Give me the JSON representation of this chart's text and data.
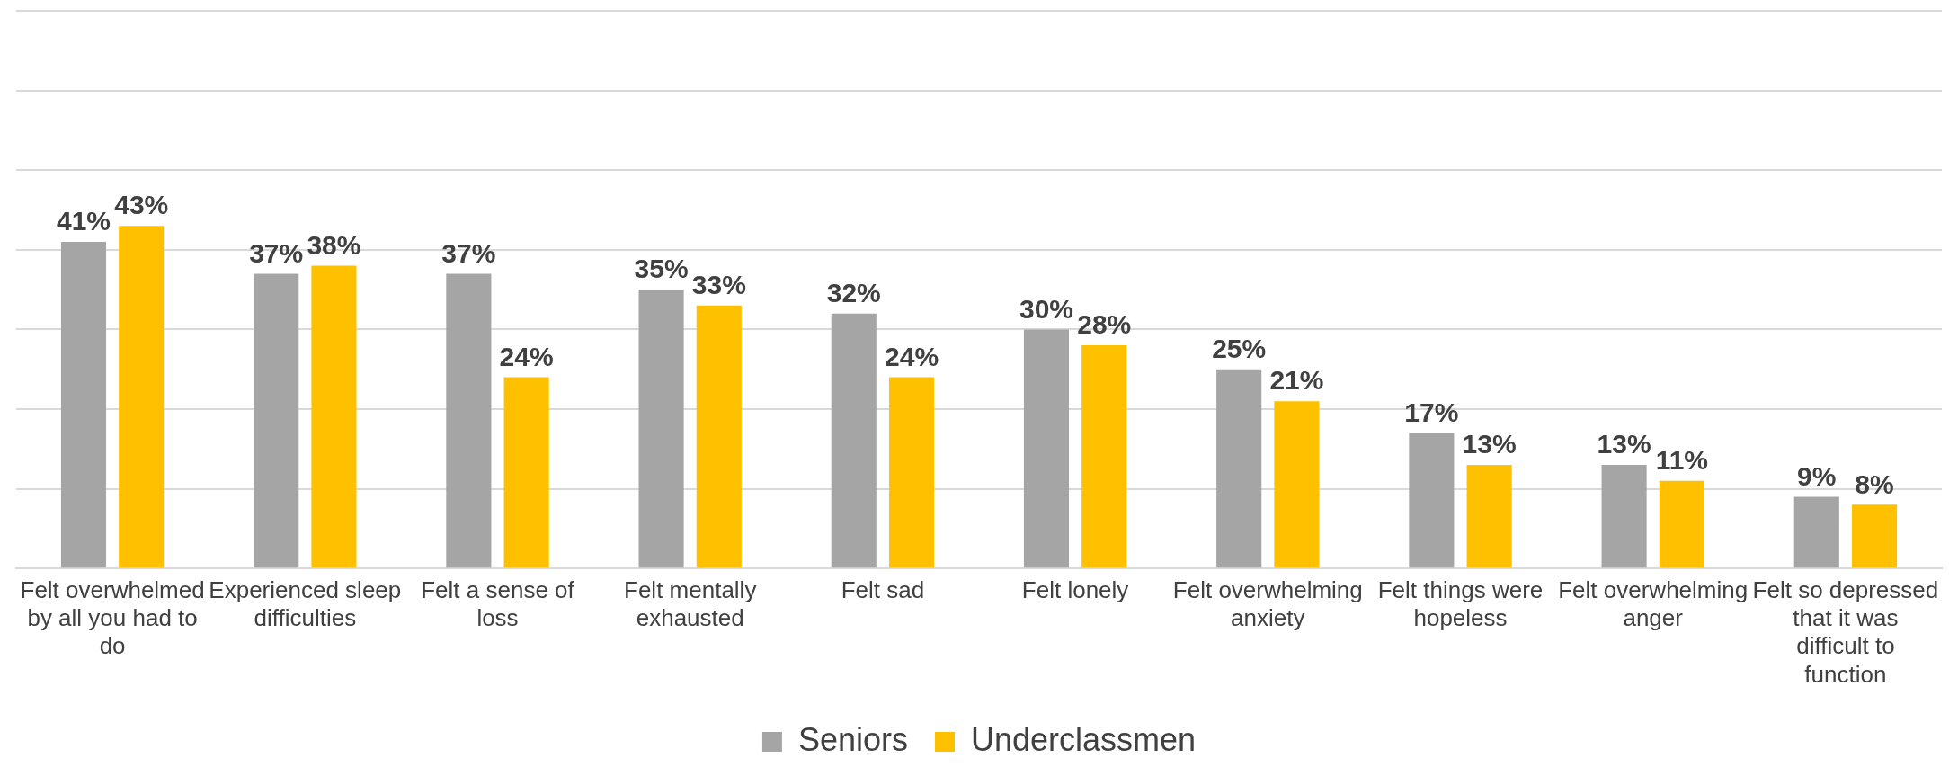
{
  "chart_data": {
    "type": "bar",
    "categories": [
      "Felt overwhelmed by all you had to do",
      "Experienced sleep difficulties",
      "Felt a sense of loss",
      "Felt mentally exhausted",
      "Felt sad",
      "Felt lonely",
      "Felt overwhelming anxiety",
      "Felt things were hopeless",
      "Felt overwhelming anger",
      "Felt so depressed that it was difficult to function"
    ],
    "series": [
      {
        "name": "Seniors",
        "color": "#a5a5a5",
        "values": [
          41,
          37,
          37,
          35,
          32,
          30,
          25,
          17,
          13,
          9
        ],
        "value_labels": [
          "41%",
          "37%",
          "37%",
          "35%",
          "32%",
          "30%",
          "25%",
          "17%",
          "13%",
          "9%"
        ]
      },
      {
        "name": "Underclassmen",
        "color": "#ffc000",
        "values": [
          43,
          38,
          24,
          33,
          24,
          28,
          21,
          13,
          11,
          8
        ],
        "value_labels": [
          "43%",
          "38%",
          "24%",
          "33%",
          "24%",
          "28%",
          "21%",
          "13%",
          "11%",
          "8%"
        ]
      }
    ],
    "ylim": [
      0,
      70
    ],
    "yticks": [
      {
        "value": 0,
        "label": null
      },
      {
        "value": 10,
        "label": null
      },
      {
        "value": 20,
        "label": null
      },
      {
        "value": 30,
        "label": null
      },
      {
        "value": 40,
        "label": null
      },
      {
        "value": 50,
        "label": null
      },
      {
        "value": 60,
        "label": null
      },
      {
        "value": 70,
        "label": null
      }
    ],
    "tick_labels": "x",
    "grid": "y",
    "legend": "bottom"
  }
}
